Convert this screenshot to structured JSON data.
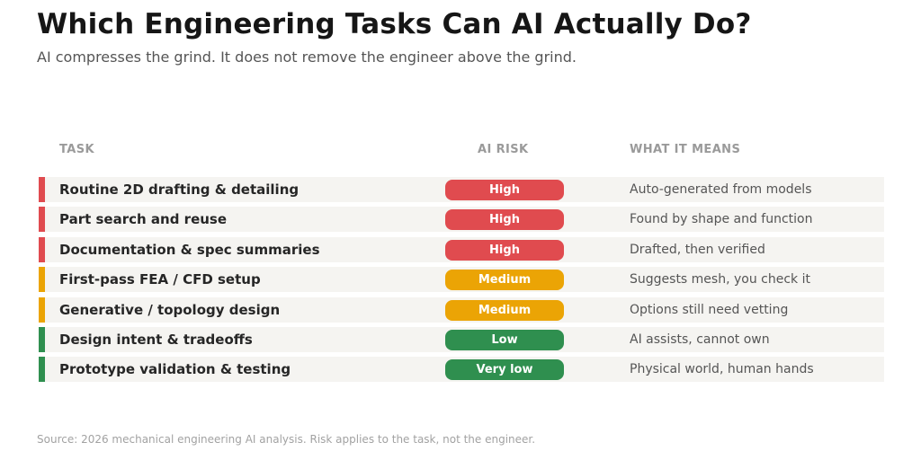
{
  "title": "Which Engineering Tasks Can AI Actually Do?",
  "subtitle": "AI compresses the grind. It does not remove the engineer above the grind.",
  "source": "Source: 2026 mechanical engineering AI analysis. Risk applies to the task, not the engineer.",
  "colors": {
    "High": "#e04b4f",
    "Medium": "#eba405",
    "Low": "#2f8f4f",
    "Very low": "#2f8f4f"
  },
  "chart_data": {
    "type": "table",
    "columns": [
      "TASK",
      "AI RISK",
      "WHAT IT MEANS"
    ],
    "rows": [
      {
        "task": "Routine 2D drafting & detailing",
        "risk": "High",
        "means": "Auto-generated from models"
      },
      {
        "task": "Part search and reuse",
        "risk": "High",
        "means": "Found by shape and function"
      },
      {
        "task": "Documentation & spec summaries",
        "risk": "High",
        "means": "Drafted, then verified"
      },
      {
        "task": "First-pass FEA / CFD setup",
        "risk": "Medium",
        "means": "Suggests mesh, you check it"
      },
      {
        "task": "Generative / topology design",
        "risk": "Medium",
        "means": "Options still need vetting"
      },
      {
        "task": "Design intent & tradeoffs",
        "risk": "Low",
        "means": "AI assists, cannot own"
      },
      {
        "task": "Prototype validation & testing",
        "risk": "Very low",
        "means": "Physical world, human hands"
      }
    ]
  }
}
